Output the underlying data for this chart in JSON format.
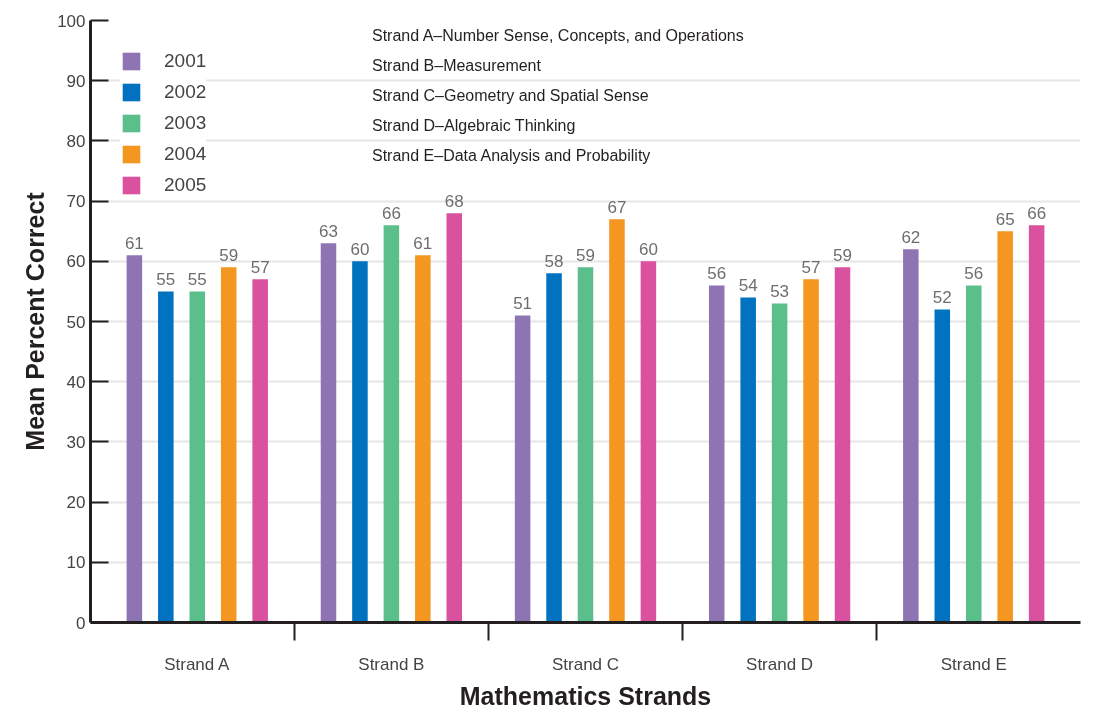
{
  "chart_data": {
    "type": "bar",
    "xlabel": "Mathematics Strands",
    "ylabel": "Mean Percent Correct",
    "categories": [
      "Strand A",
      "Strand B",
      "Strand C",
      "Strand D",
      "Strand E"
    ],
    "series": [
      {
        "name": "2001",
        "color": "#8e74b2",
        "values": [
          61,
          63,
          51,
          56,
          62
        ]
      },
      {
        "name": "2002",
        "color": "#0072bf",
        "values": [
          55,
          60,
          58,
          54,
          52
        ]
      },
      {
        "name": "2003",
        "color": "#5bbf8c",
        "values": [
          55,
          66,
          59,
          53,
          56
        ]
      },
      {
        "name": "2004",
        "color": "#f39720",
        "values": [
          59,
          61,
          67,
          57,
          65
        ]
      },
      {
        "name": "2005",
        "color": "#da529f",
        "values": [
          57,
          68,
          60,
          59,
          66
        ]
      }
    ],
    "ylim": [
      0,
      100
    ],
    "yticks": [
      0,
      10,
      20,
      30,
      40,
      50,
      60,
      70,
      80,
      90,
      100
    ],
    "grid": "y",
    "legend": "top left",
    "data_labels": true,
    "annotations": [
      "Strand A–Number Sense, Concepts, and Operations",
      "Strand B–Measurement",
      "Strand C–Geometry and Spatial Sense",
      "Strand D–Algebraic Thinking",
      "Strand E–Data Analysis and Probability"
    ]
  }
}
